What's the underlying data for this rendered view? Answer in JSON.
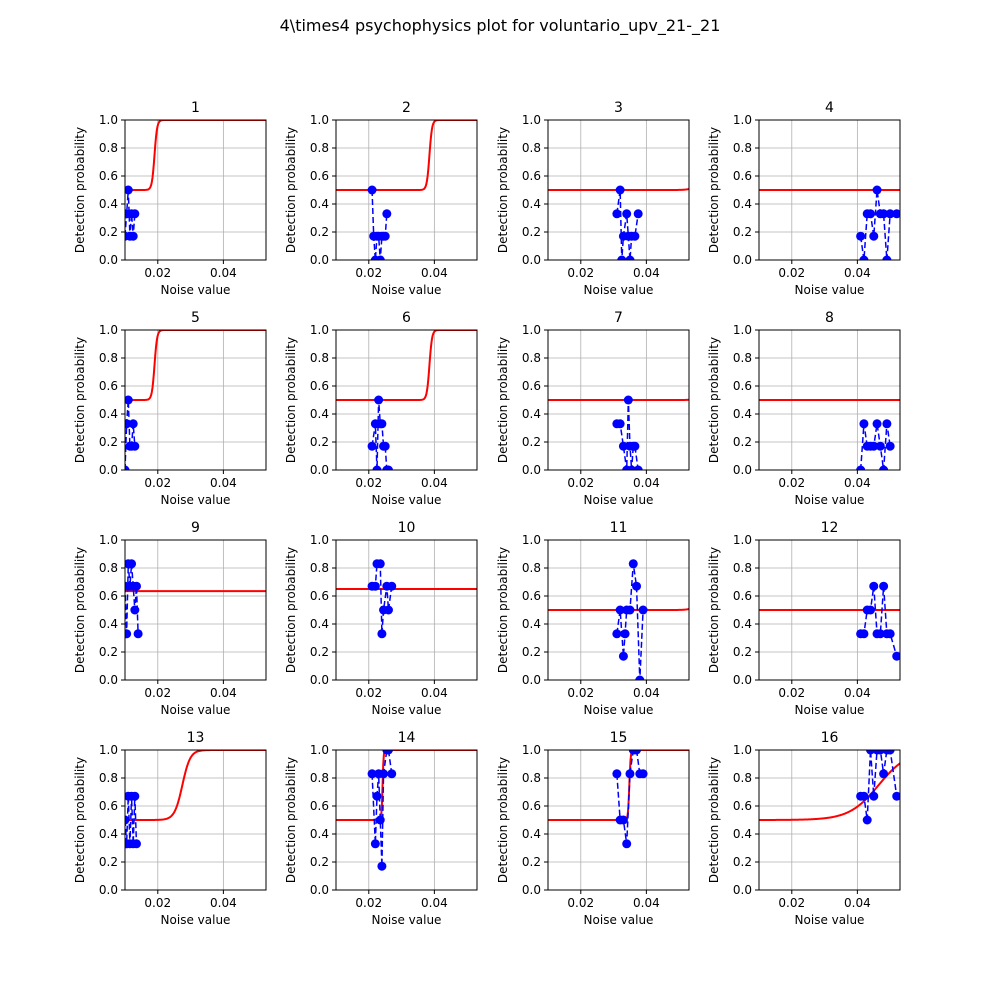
{
  "figure": {
    "title": "4\\times4 psychophysics plot for voluntario_upv_21-_21"
  },
  "chart_data": {
    "type": "line",
    "xlabel": "Noise value",
    "ylabel": "Detection probability",
    "xlim": [
      0.01,
      0.053
    ],
    "ylim": [
      0,
      1
    ],
    "xticks": [
      0.02,
      0.04
    ],
    "xtick_labels": [
      "0.02",
      "0.04"
    ],
    "yticks": [
      0,
      0.2,
      0.4,
      0.6,
      0.8,
      1.0
    ],
    "ytick_labels": [
      "0.0",
      "0.2",
      "0.4",
      "0.6",
      "0.8",
      "1.0"
    ],
    "grid": true,
    "colors": {
      "data": "#0000ff",
      "fit": "#ff0000",
      "grid": "#b0b0b0"
    },
    "panels": [
      {
        "title": "1",
        "points": [
          [
            0.01,
            0.17
          ],
          [
            0.0105,
            0.33
          ],
          [
            0.011,
            0.5
          ],
          [
            0.0115,
            0.17
          ],
          [
            0.012,
            0.33
          ],
          [
            0.0125,
            0.17
          ],
          [
            0.013,
            0.33
          ]
        ],
        "fit": {
          "base": 0.5,
          "top": 1.0,
          "mid": 0.019,
          "scale": 0.0004
        }
      },
      {
        "title": "2",
        "points": [
          [
            0.021,
            0.5
          ],
          [
            0.0215,
            0.17
          ],
          [
            0.022,
            0.0
          ],
          [
            0.0225,
            0.17
          ],
          [
            0.023,
            0.17
          ],
          [
            0.0235,
            0.0
          ],
          [
            0.024,
            0.17
          ],
          [
            0.0245,
            0.17
          ],
          [
            0.025,
            0.17
          ],
          [
            0.0255,
            0.33
          ]
        ],
        "fit": {
          "base": 0.5,
          "top": 1.0,
          "mid": 0.0385,
          "scale": 0.0004
        }
      },
      {
        "title": "3",
        "points": [
          [
            0.031,
            0.33
          ],
          [
            0.032,
            0.5
          ],
          [
            0.0325,
            0.0
          ],
          [
            0.033,
            0.17
          ],
          [
            0.034,
            0.33
          ],
          [
            0.0345,
            0.17
          ],
          [
            0.035,
            0.0
          ],
          [
            0.0355,
            0.17
          ],
          [
            0.0365,
            0.17
          ],
          [
            0.0375,
            0.33
          ]
        ],
        "fit": {
          "base": 0.5,
          "top": 1.0,
          "mid": 0.058,
          "scale": 0.0012
        }
      },
      {
        "title": "4",
        "points": [
          [
            0.041,
            0.17
          ],
          [
            0.042,
            0.0
          ],
          [
            0.043,
            0.33
          ],
          [
            0.044,
            0.33
          ],
          [
            0.045,
            0.17
          ],
          [
            0.046,
            0.5
          ],
          [
            0.047,
            0.33
          ],
          [
            0.048,
            0.33
          ],
          [
            0.049,
            0.0
          ],
          [
            0.05,
            0.33
          ],
          [
            0.052,
            0.33
          ]
        ],
        "fit": {
          "base": 0.5,
          "top": 1.0,
          "mid": 0.075,
          "scale": 0.0012
        }
      },
      {
        "title": "5",
        "points": [
          [
            0.01,
            0.0
          ],
          [
            0.0105,
            0.33
          ],
          [
            0.011,
            0.5
          ],
          [
            0.0115,
            0.17
          ],
          [
            0.012,
            0.17
          ],
          [
            0.0125,
            0.33
          ],
          [
            0.013,
            0.17
          ]
        ],
        "fit": {
          "base": 0.5,
          "top": 1.0,
          "mid": 0.019,
          "scale": 0.0004
        }
      },
      {
        "title": "6",
        "points": [
          [
            0.021,
            0.17
          ],
          [
            0.022,
            0.33
          ],
          [
            0.0225,
            0.0
          ],
          [
            0.023,
            0.5
          ],
          [
            0.0235,
            0.33
          ],
          [
            0.024,
            0.33
          ],
          [
            0.0245,
            0.17
          ],
          [
            0.025,
            0.17
          ],
          [
            0.0255,
            0.0
          ],
          [
            0.026,
            0.0
          ]
        ],
        "fit": {
          "base": 0.5,
          "top": 1.0,
          "mid": 0.0385,
          "scale": 0.0004
        }
      },
      {
        "title": "7",
        "points": [
          [
            0.031,
            0.33
          ],
          [
            0.032,
            0.33
          ],
          [
            0.033,
            0.17
          ],
          [
            0.034,
            0.0
          ],
          [
            0.0345,
            0.5
          ],
          [
            0.035,
            0.17
          ],
          [
            0.0355,
            0.0
          ],
          [
            0.036,
            0.17
          ],
          [
            0.0365,
            0.17
          ],
          [
            0.0375,
            0.0
          ]
        ],
        "fit": {
          "base": 0.5,
          "top": 1.0,
          "mid": 0.0575,
          "scale": 0.0008
        }
      },
      {
        "title": "8",
        "points": [
          [
            0.041,
            0.0
          ],
          [
            0.042,
            0.33
          ],
          [
            0.043,
            0.17
          ],
          [
            0.044,
            0.17
          ],
          [
            0.045,
            0.17
          ],
          [
            0.046,
            0.33
          ],
          [
            0.047,
            0.17
          ],
          [
            0.048,
            0.0
          ],
          [
            0.049,
            0.33
          ],
          [
            0.05,
            0.17
          ]
        ],
        "fit": {
          "base": 0.5,
          "top": 1.0,
          "mid": 0.075,
          "scale": 0.0012
        }
      },
      {
        "title": "9",
        "points": [
          [
            0.01,
            0.67
          ],
          [
            0.0105,
            0.33
          ],
          [
            0.011,
            0.83
          ],
          [
            0.0115,
            0.67
          ],
          [
            0.012,
            0.83
          ],
          [
            0.0125,
            0.67
          ],
          [
            0.013,
            0.5
          ],
          [
            0.0135,
            0.67
          ],
          [
            0.014,
            0.33
          ]
        ],
        "fit": {
          "base": 0.635,
          "top": 0.635,
          "mid": 0.05,
          "scale": 0.01
        }
      },
      {
        "title": "10",
        "points": [
          [
            0.021,
            0.67
          ],
          [
            0.022,
            0.67
          ],
          [
            0.0225,
            0.83
          ],
          [
            0.0235,
            0.83
          ],
          [
            0.024,
            0.33
          ],
          [
            0.0245,
            0.5
          ],
          [
            0.0255,
            0.67
          ],
          [
            0.026,
            0.5
          ],
          [
            0.027,
            0.67
          ]
        ],
        "fit": {
          "base": 0.65,
          "top": 0.65,
          "mid": 0.05,
          "scale": 0.01
        }
      },
      {
        "title": "11",
        "points": [
          [
            0.031,
            0.33
          ],
          [
            0.032,
            0.5
          ],
          [
            0.033,
            0.17
          ],
          [
            0.0335,
            0.33
          ],
          [
            0.034,
            0.5
          ],
          [
            0.035,
            0.5
          ],
          [
            0.036,
            0.83
          ],
          [
            0.037,
            0.67
          ],
          [
            0.038,
            0.0
          ],
          [
            0.039,
            0.5
          ]
        ],
        "fit": {
          "base": 0.5,
          "top": 1.0,
          "mid": 0.058,
          "scale": 0.0012
        }
      },
      {
        "title": "12",
        "points": [
          [
            0.041,
            0.33
          ],
          [
            0.042,
            0.33
          ],
          [
            0.043,
            0.5
          ],
          [
            0.044,
            0.5
          ],
          [
            0.045,
            0.67
          ],
          [
            0.046,
            0.33
          ],
          [
            0.047,
            0.33
          ],
          [
            0.048,
            0.67
          ],
          [
            0.049,
            0.33
          ],
          [
            0.05,
            0.33
          ],
          [
            0.052,
            0.17
          ]
        ],
        "fit": {
          "base": 0.5,
          "top": 1.0,
          "mid": 0.075,
          "scale": 0.0012
        }
      },
      {
        "title": "13",
        "points": [
          [
            0.01,
            0.5
          ],
          [
            0.0105,
            0.33
          ],
          [
            0.011,
            0.67
          ],
          [
            0.0115,
            0.33
          ],
          [
            0.012,
            0.67
          ],
          [
            0.0125,
            0.33
          ],
          [
            0.013,
            0.67
          ],
          [
            0.0135,
            0.33
          ]
        ],
        "fit": {
          "base": 0.5,
          "top": 1.0,
          "mid": 0.0275,
          "scale": 0.0012
        }
      },
      {
        "title": "14",
        "points": [
          [
            0.021,
            0.83
          ],
          [
            0.022,
            0.33
          ],
          [
            0.0225,
            0.67
          ],
          [
            0.023,
            0.83
          ],
          [
            0.0235,
            0.5
          ],
          [
            0.024,
            0.17
          ],
          [
            0.0245,
            0.83
          ],
          [
            0.0255,
            1.0
          ],
          [
            0.026,
            1.0
          ],
          [
            0.027,
            0.83
          ]
        ],
        "fit": {
          "base": 0.5,
          "top": 1.0,
          "mid": 0.0242,
          "scale": 0.00015
        }
      },
      {
        "title": "15",
        "points": [
          [
            0.031,
            0.83
          ],
          [
            0.032,
            0.5
          ],
          [
            0.033,
            0.5
          ],
          [
            0.034,
            0.33
          ],
          [
            0.035,
            0.83
          ],
          [
            0.036,
            1.0
          ],
          [
            0.037,
            1.0
          ],
          [
            0.038,
            0.83
          ],
          [
            0.039,
            0.83
          ]
        ],
        "fit": {
          "base": 0.5,
          "top": 1.0,
          "mid": 0.0348,
          "scale": 0.0002
        }
      },
      {
        "title": "16",
        "points": [
          [
            0.041,
            0.67
          ],
          [
            0.042,
            0.67
          ],
          [
            0.043,
            0.5
          ],
          [
            0.044,
            1.0
          ],
          [
            0.045,
            0.67
          ],
          [
            0.046,
            1.0
          ],
          [
            0.047,
            1.0
          ],
          [
            0.048,
            0.83
          ],
          [
            0.049,
            1.0
          ],
          [
            0.05,
            1.0
          ],
          [
            0.052,
            0.67
          ]
        ],
        "fit": {
          "base": 0.5,
          "top": 1.0,
          "mid": 0.0465,
          "scale": 0.0045
        }
      }
    ]
  }
}
